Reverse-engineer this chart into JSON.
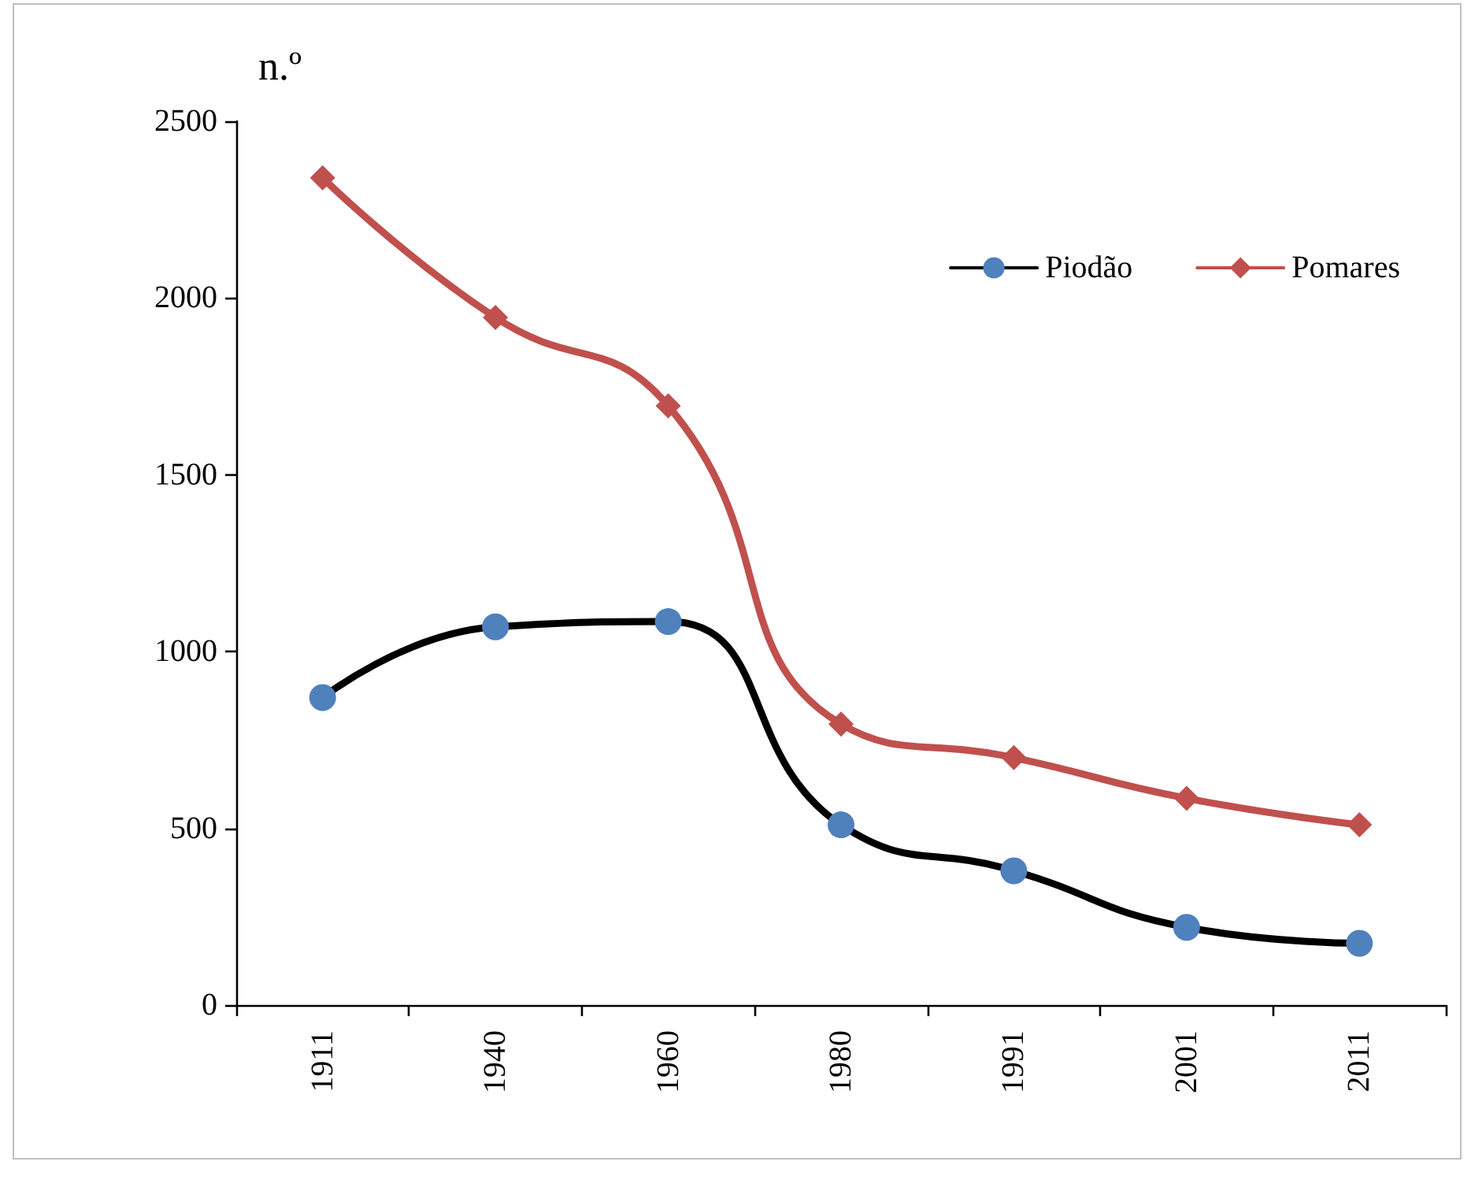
{
  "chart_data": {
    "type": "line",
    "ylabel": "n.º",
    "categories": [
      "1911",
      "1940",
      "1960",
      "1980",
      "1991",
      "2001",
      "2011"
    ],
    "series": [
      {
        "name": "Piodão",
        "color": "#000000",
        "colors": [
          "#4f81bd",
          "#4f81bd",
          "#4f81bd",
          "#4f81bd",
          "#4f81bd",
          "#4f81bd",
          "#4f81bd"
        ],
        "marker": "circle",
        "values": [
          870,
          1070,
          1085,
          510,
          380,
          220,
          175
        ]
      },
      {
        "name": "Pomares",
        "color": "#c0504d",
        "marker": "diamond",
        "values": [
          2340,
          1945,
          1695,
          795,
          700,
          585,
          510
        ]
      }
    ],
    "ylim": [
      0,
      2500
    ],
    "yticks": [
      0,
      500,
      1000,
      1500,
      2000,
      2500
    ],
    "legend": "top right",
    "grid": false
  }
}
